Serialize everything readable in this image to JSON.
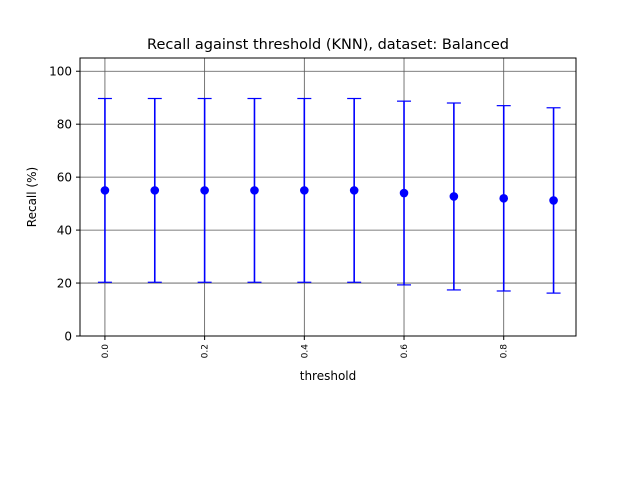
{
  "chart_data": {
    "type": "scatter",
    "title": "Recall against threshold (KNN), dataset: Balanced",
    "xlabel": "threshold",
    "ylabel": "Recall (%)",
    "xlim": [
      -0.05,
      0.945
    ],
    "ylim": [
      0,
      105
    ],
    "xticks": [
      0.0,
      0.2,
      0.4,
      0.6,
      0.8
    ],
    "xtick_labels": [
      "0.0",
      "0.2",
      "0.4",
      "0.6",
      "0.8"
    ],
    "yticks": [
      0,
      20,
      40,
      60,
      80,
      100
    ],
    "ytick_labels": [
      "0",
      "20",
      "40",
      "60",
      "80",
      "100"
    ],
    "grid": true,
    "series": [
      {
        "color": "#0000ff",
        "x": [
          0.0,
          0.1,
          0.2,
          0.3,
          0.4,
          0.5,
          0.6,
          0.7,
          0.8,
          0.9
        ],
        "y": [
          55.0,
          55.0,
          55.0,
          55.0,
          55.0,
          55.0,
          54.0,
          52.7,
          52.0,
          51.2
        ],
        "y_low": [
          20.3,
          20.3,
          20.3,
          20.3,
          20.3,
          20.3,
          19.3,
          17.4,
          17.0,
          16.2
        ],
        "y_high": [
          89.7,
          89.7,
          89.7,
          89.7,
          89.7,
          89.7,
          88.7,
          88.0,
          87.0,
          86.2
        ]
      }
    ]
  }
}
